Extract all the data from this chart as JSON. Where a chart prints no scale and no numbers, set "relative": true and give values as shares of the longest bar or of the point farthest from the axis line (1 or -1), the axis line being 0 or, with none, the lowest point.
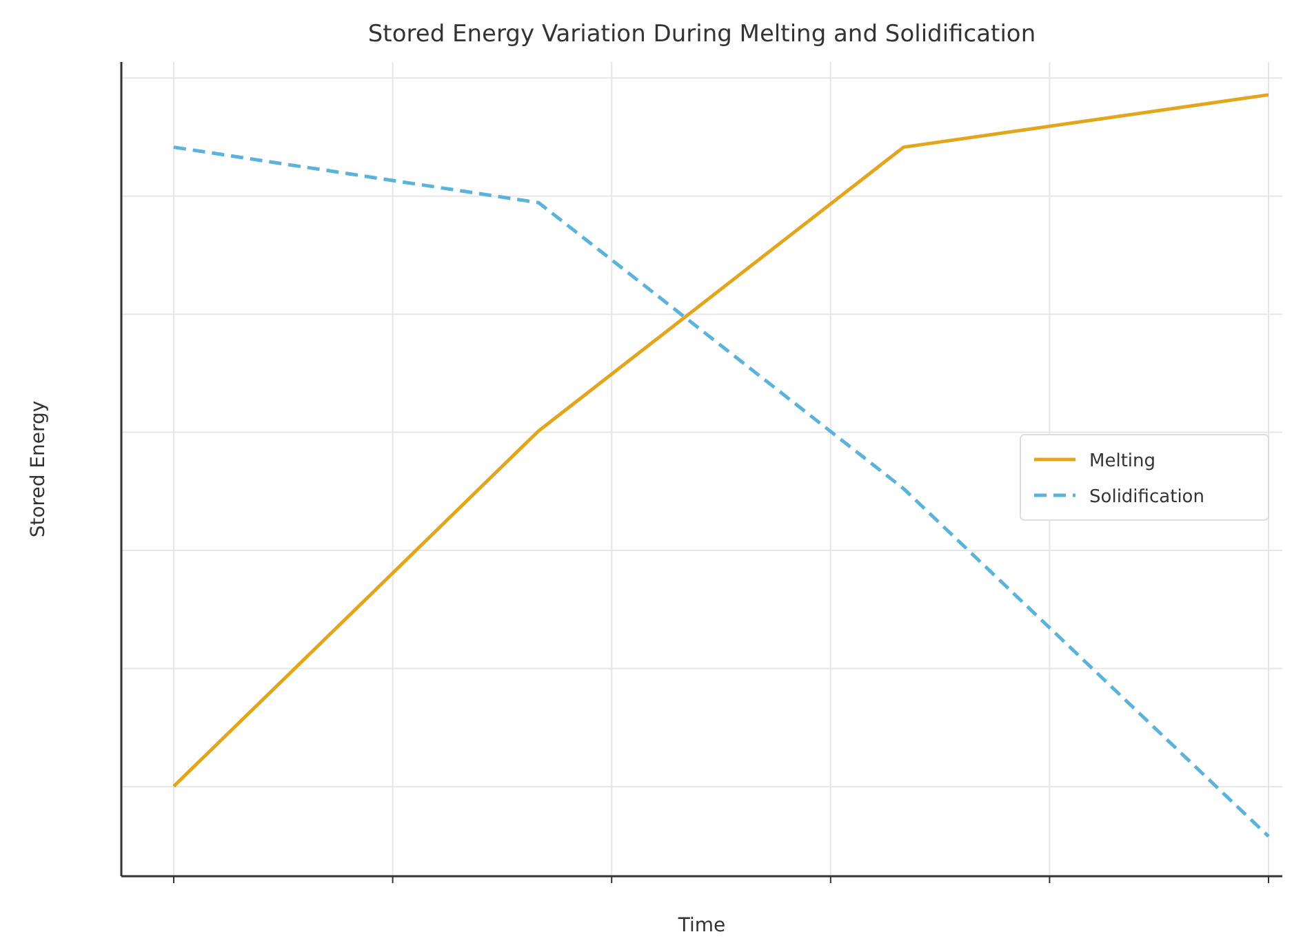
{
  "chart_data": {
    "type": "line",
    "title": "Stored Energy Variation During Melting and Solidification",
    "xlabel": "Time",
    "ylabel": "Stored Energy",
    "relative": true,
    "categories": [
      null,
      null,
      null,
      null
    ],
    "grid": true,
    "legend": "center right",
    "marker": "none",
    "series": [
      {
        "name": "Melting",
        "color": "#e3a51c",
        "line_style": "solid",
        "values": [
          0.115,
          0.57,
          0.933,
          1.0
        ]
      },
      {
        "name": "Solidification",
        "color": "#5bb3dc",
        "line_style": "dashed",
        "values": [
          0.933,
          0.862,
          0.496,
          0.051
        ]
      }
    ]
  }
}
